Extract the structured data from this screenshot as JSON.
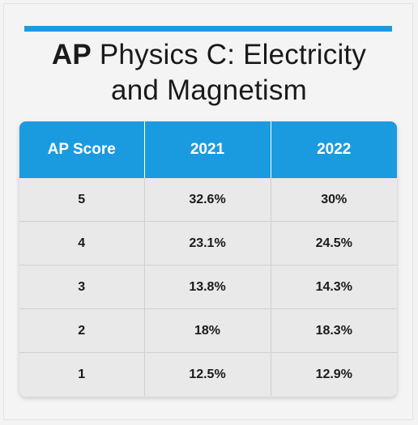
{
  "title": {
    "line1_bold": "AP",
    "line1_rest": " Physics C: Electricity",
    "line2": "and Magnetism"
  },
  "colors": {
    "accent": "#1a9be0",
    "header_text": "#ffffff",
    "row_bg": "#e9e9ea"
  },
  "chart_data": {
    "type": "table",
    "columns": [
      "AP Score",
      "2021",
      "2022"
    ],
    "rows": [
      [
        "5",
        "32.6%",
        "30%"
      ],
      [
        "4",
        "23.1%",
        "24.5%"
      ],
      [
        "3",
        "13.8%",
        "14.3%"
      ],
      [
        "2",
        "18%",
        "18.3%"
      ],
      [
        "1",
        "12.5%",
        "12.9%"
      ]
    ]
  }
}
